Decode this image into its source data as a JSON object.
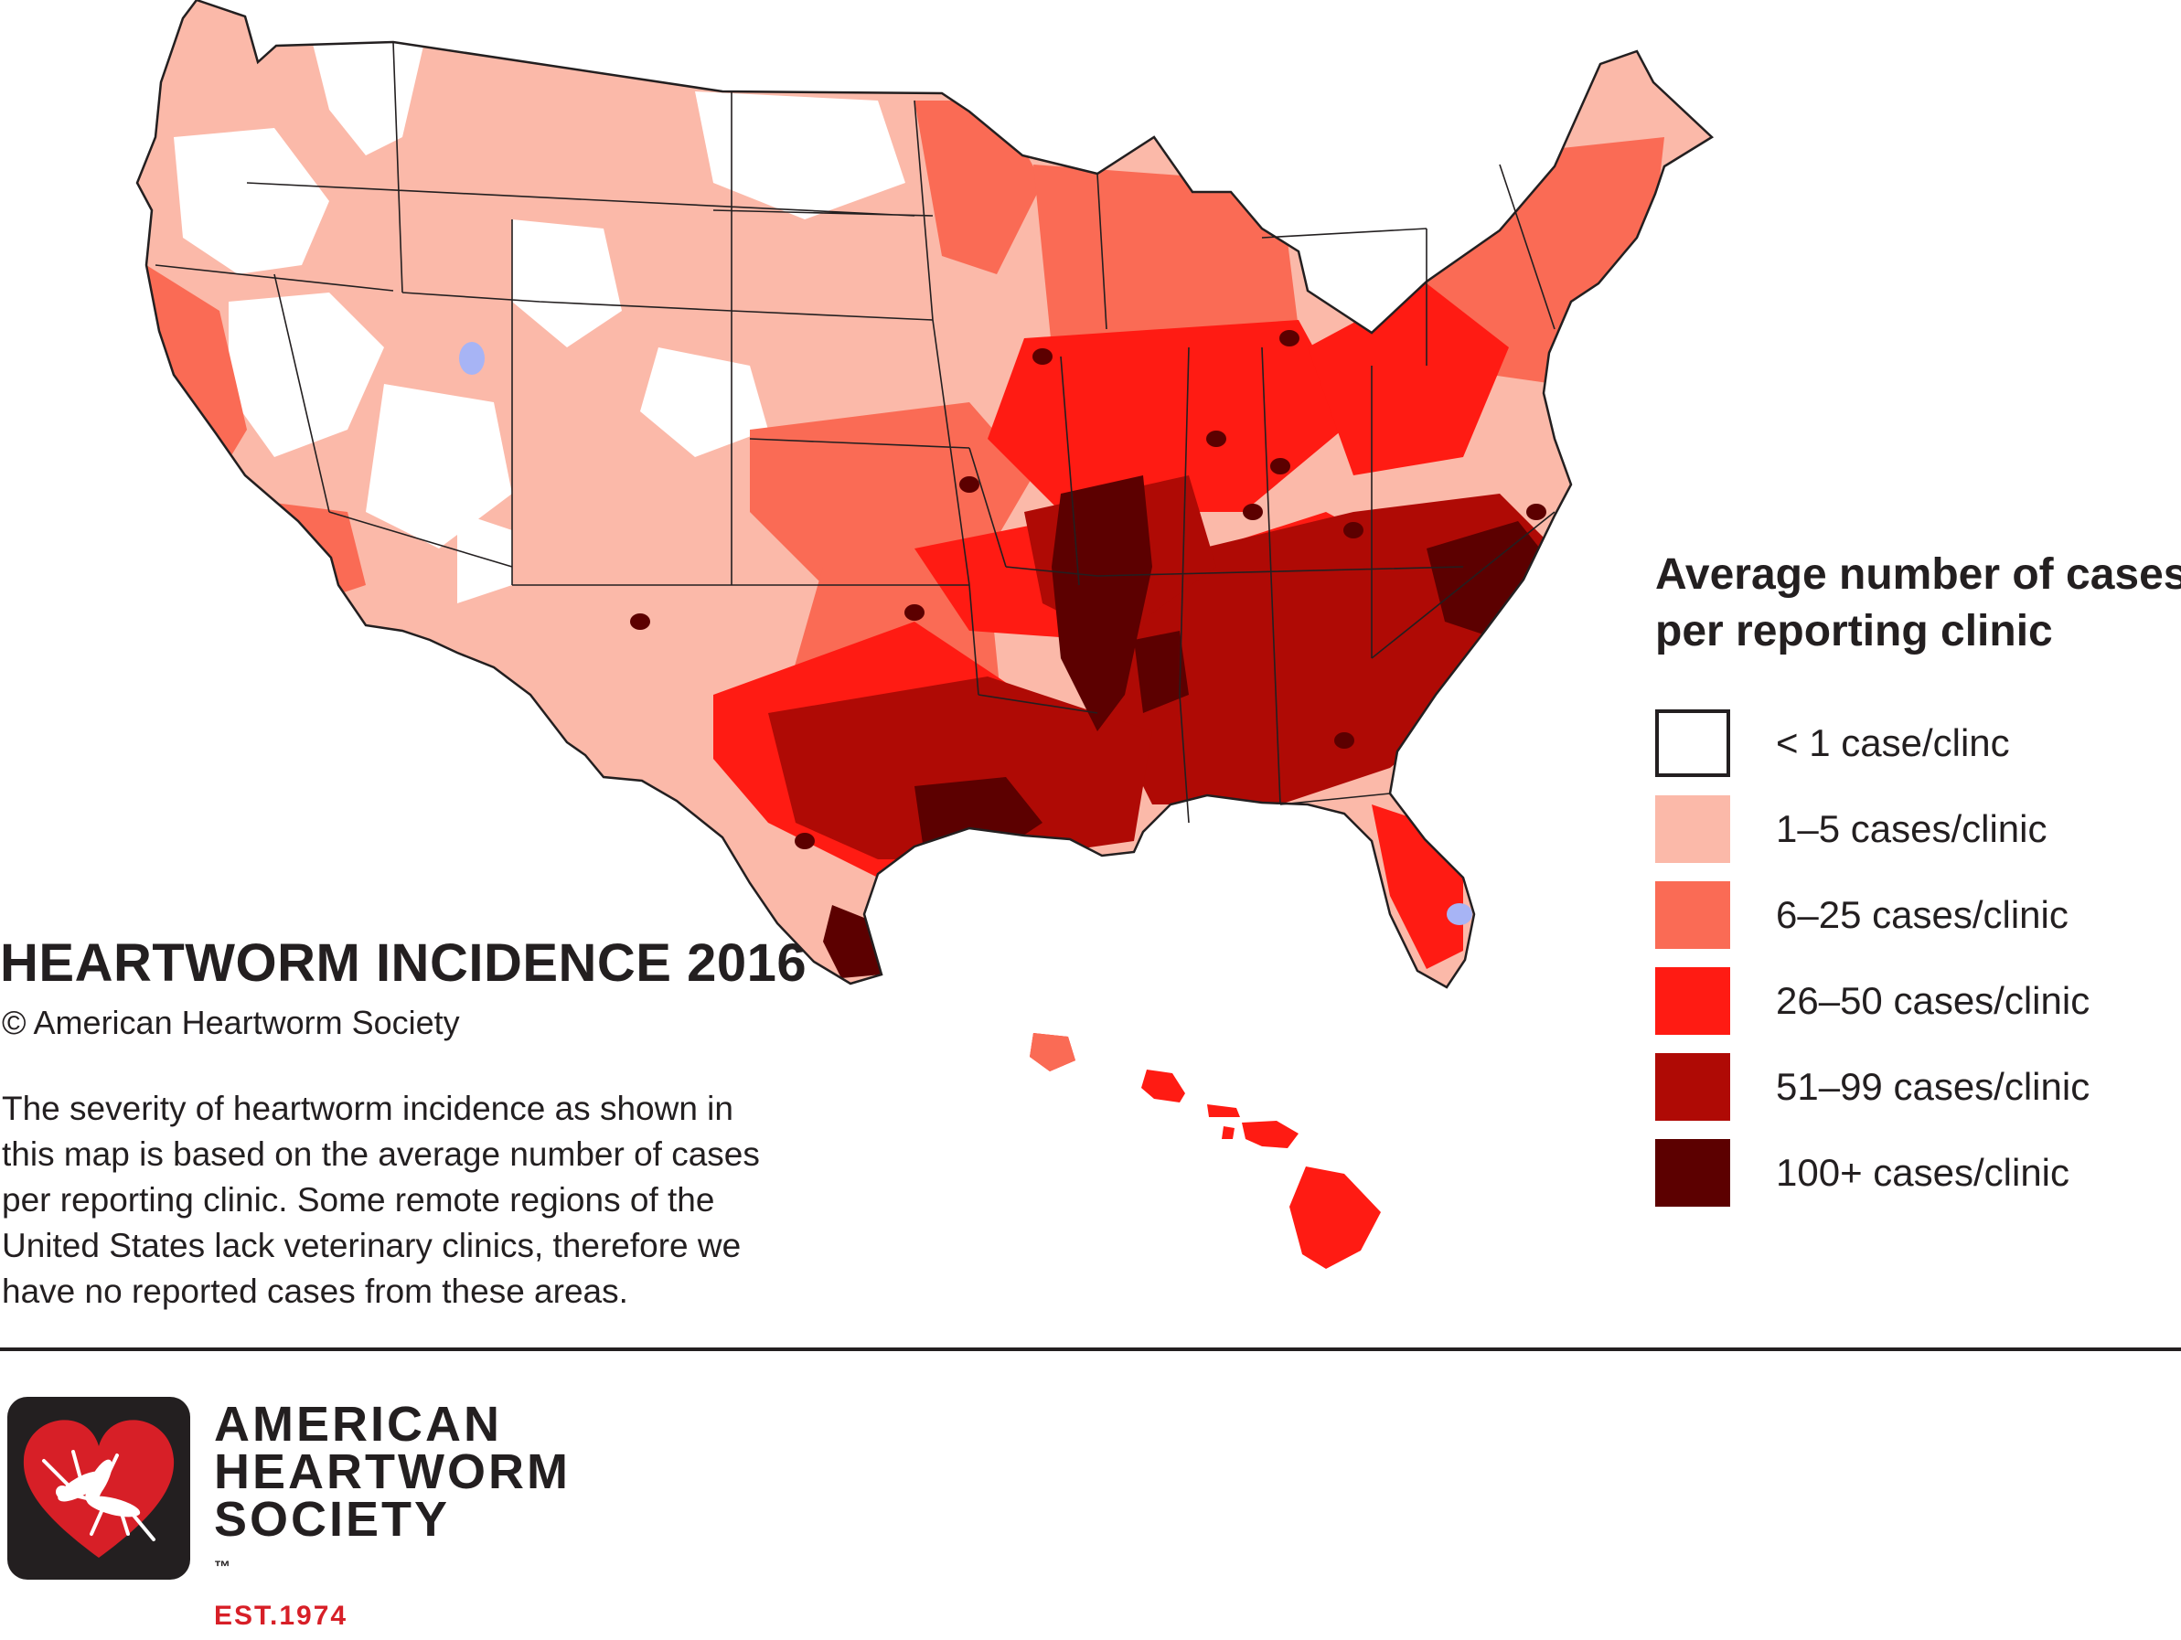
{
  "map": {
    "title": "HEARTWORM INCIDENCE 2016",
    "copyright": "© American Heartworm Society",
    "description_lines": [
      "The severity of heartworm incidence as shown in",
      "this map is based on the average number of cases",
      "per reporting clinic. Some remote regions of the",
      "United States lack veterinary clinics, therefore we",
      "have no reported cases from these areas."
    ],
    "region_levels": {
      "pacific-northwest": "1-5",
      "montana-dakotas": "1-5",
      "great-basin": "lt1",
      "rockies": "1-5",
      "southwest": "1-5",
      "california-valley": "6-25",
      "great-plains": "6-25",
      "upper-midwest": "6-25",
      "northeast": "6-25",
      "mid-atlantic": "26-50",
      "ohio-valley": "26-50",
      "texas": "26-50",
      "southeast": "51-99",
      "gulf-coast": "51-99",
      "mississippi-delta": "100+",
      "south-texas": "100+",
      "carolinas-core": "100+",
      "florida": "26-50",
      "hawaii": "26-50"
    }
  },
  "legend": {
    "title_lines": [
      "Average number of cases",
      "per reporting clinic"
    ],
    "items": [
      {
        "id": "lt1",
        "label": "< 1 case/clinc",
        "color": "#ffffff",
        "border": "#231f20"
      },
      {
        "id": "1-5",
        "label": "1–5 cases/clinic",
        "color": "#fbb9a9"
      },
      {
        "id": "6-25",
        "label": "6–25 cases/clinic",
        "color": "#fa6b55"
      },
      {
        "id": "26-50",
        "label": "26–50 cases/clinic",
        "color": "#ff1b13"
      },
      {
        "id": "51-99",
        "label": "51–99 cases/clinic",
        "color": "#af0a05"
      },
      {
        "id": "100+",
        "label": "100+ cases/clinic",
        "color": "#5c0000"
      }
    ]
  },
  "water_color": "#a7b4f5",
  "footer": {
    "org_lines": [
      "AMERICAN",
      "HEARTWORM",
      "SOCIETY"
    ],
    "trademark": "™",
    "established": "EST.1974",
    "logo_icon": "mosquito-heart-icon"
  }
}
